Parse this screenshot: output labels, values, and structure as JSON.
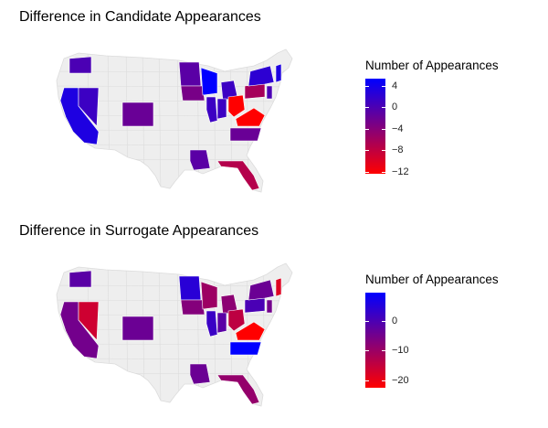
{
  "colors": {
    "land": "#eeeeee",
    "border": "#dcdcdc",
    "scale_high": "#0000ff",
    "scale_low": "#ff0000"
  },
  "panels": [
    {
      "title": "Difference in Candidate Appearances",
      "legend_title": "Number of Appearances",
      "scale": {
        "min": -12,
        "max": 5
      },
      "ticks": [
        {
          "value": 4,
          "label": "4"
        },
        {
          "value": 0,
          "label": "0"
        },
        {
          "value": -4,
          "label": "−4"
        },
        {
          "value": -8,
          "label": "−8"
        },
        {
          "value": -12,
          "label": "−12"
        }
      ],
      "states": [
        {
          "name": "WA",
          "value": 0
        },
        {
          "name": "CA",
          "value": 3
        },
        {
          "name": "NV",
          "value": 1
        },
        {
          "name": "CO",
          "value": -2
        },
        {
          "name": "MN",
          "value": -1
        },
        {
          "name": "IA",
          "value": -3
        },
        {
          "name": "WI",
          "value": 5
        },
        {
          "name": "MI",
          "value": 1
        },
        {
          "name": "IL",
          "value": 1
        },
        {
          "name": "IN",
          "value": 1
        },
        {
          "name": "OH",
          "value": -12
        },
        {
          "name": "PA",
          "value": -6
        },
        {
          "name": "NY",
          "value": 2
        },
        {
          "name": "NJ",
          "value": 0
        },
        {
          "name": "NH",
          "value": 3
        },
        {
          "name": "VA",
          "value": -12
        },
        {
          "name": "NC",
          "value": -2
        },
        {
          "name": "LA",
          "value": -1
        },
        {
          "name": "FL",
          "value": -7
        }
      ]
    },
    {
      "title": "Difference in Surrogate Appearances",
      "legend_title": "Number of Appearances",
      "scale": {
        "min": -22,
        "max": 9
      },
      "ticks": [
        {
          "value": 0,
          "label": "0"
        },
        {
          "value": -10,
          "label": "−10"
        },
        {
          "value": -20,
          "label": "−20"
        }
      ],
      "states": [
        {
          "name": "WA",
          "value": -2
        },
        {
          "name": "CA",
          "value": -5
        },
        {
          "name": "NV",
          "value": -16
        },
        {
          "name": "CO",
          "value": -4
        },
        {
          "name": "MN",
          "value": 4
        },
        {
          "name": "IA",
          "value": -7
        },
        {
          "name": "WI",
          "value": -10
        },
        {
          "name": "MI",
          "value": -8
        },
        {
          "name": "IL",
          "value": 2
        },
        {
          "name": "IN",
          "value": -2
        },
        {
          "name": "OH",
          "value": -14
        },
        {
          "name": "PA",
          "value": 0
        },
        {
          "name": "NY",
          "value": -4
        },
        {
          "name": "NJ",
          "value": -5
        },
        {
          "name": "NH",
          "value": -18
        },
        {
          "name": "VA",
          "value": -22
        },
        {
          "name": "NC",
          "value": 9
        },
        {
          "name": "LA",
          "value": -4
        },
        {
          "name": "FL",
          "value": -9
        }
      ]
    }
  ]
}
